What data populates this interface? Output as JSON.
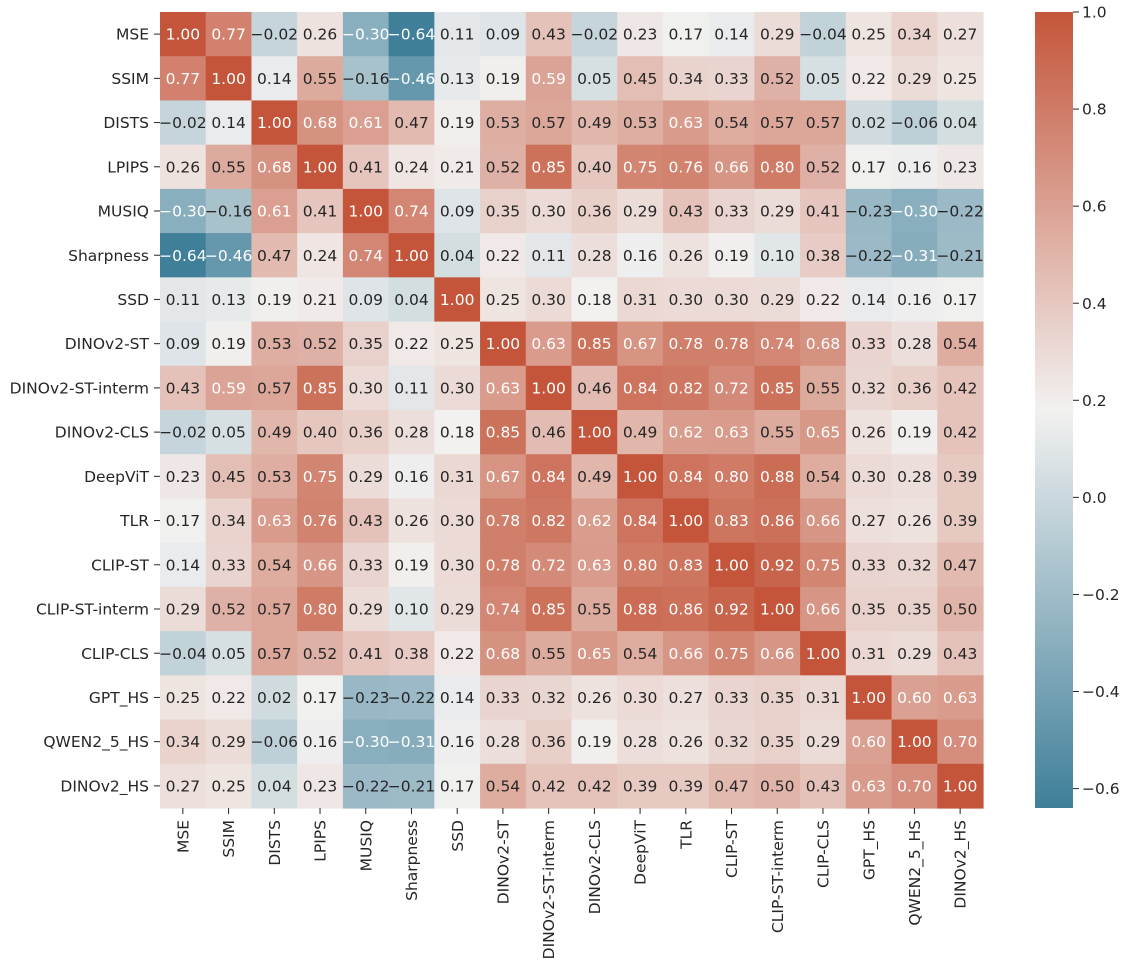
{
  "chart_data": {
    "type": "heatmap",
    "title": "",
    "xlabel": "",
    "ylabel": "",
    "labels": [
      "MSE",
      "SSIM",
      "DISTS",
      "LPIPS",
      "MUSIQ",
      "Sharpness",
      "SSD",
      "DINOv2-ST",
      "DINOv2-ST-interm",
      "DINOv2-CLS",
      "DeepViT",
      "TLR",
      "CLIP-ST",
      "CLIP-ST-interm",
      "CLIP-CLS",
      "GPT_HS",
      "QWEN2_5_HS",
      "DINOv2_HS"
    ],
    "values": [
      [
        1.0,
        0.77,
        -0.02,
        0.26,
        -0.3,
        -0.64,
        0.11,
        0.09,
        0.43,
        -0.02,
        0.23,
        0.17,
        0.14,
        0.29,
        -0.04,
        0.25,
        0.34,
        0.27
      ],
      [
        0.77,
        1.0,
        0.14,
        0.55,
        -0.16,
        -0.46,
        0.13,
        0.19,
        0.59,
        0.05,
        0.45,
        0.34,
        0.33,
        0.52,
        0.05,
        0.22,
        0.29,
        0.25
      ],
      [
        -0.02,
        0.14,
        1.0,
        0.68,
        0.61,
        0.47,
        0.19,
        0.53,
        0.57,
        0.49,
        0.53,
        0.63,
        0.54,
        0.57,
        0.57,
        0.02,
        -0.06,
        0.04
      ],
      [
        0.26,
        0.55,
        0.68,
        1.0,
        0.41,
        0.24,
        0.21,
        0.52,
        0.85,
        0.4,
        0.75,
        0.76,
        0.66,
        0.8,
        0.52,
        0.17,
        0.16,
        0.23
      ],
      [
        -0.3,
        -0.16,
        0.61,
        0.41,
        1.0,
        0.74,
        0.09,
        0.35,
        0.3,
        0.36,
        0.29,
        0.43,
        0.33,
        0.29,
        0.41,
        -0.23,
        -0.3,
        -0.22
      ],
      [
        -0.64,
        -0.46,
        0.47,
        0.24,
        0.74,
        1.0,
        0.04,
        0.22,
        0.11,
        0.28,
        0.16,
        0.26,
        0.19,
        0.1,
        0.38,
        -0.22,
        -0.31,
        -0.21
      ],
      [
        0.11,
        0.13,
        0.19,
        0.21,
        0.09,
        0.04,
        1.0,
        0.25,
        0.3,
        0.18,
        0.31,
        0.3,
        0.3,
        0.29,
        0.22,
        0.14,
        0.16,
        0.17
      ],
      [
        0.09,
        0.19,
        0.53,
        0.52,
        0.35,
        0.22,
        0.25,
        1.0,
        0.63,
        0.85,
        0.67,
        0.78,
        0.78,
        0.74,
        0.68,
        0.33,
        0.28,
        0.54
      ],
      [
        0.43,
        0.59,
        0.57,
        0.85,
        0.3,
        0.11,
        0.3,
        0.63,
        1.0,
        0.46,
        0.84,
        0.82,
        0.72,
        0.85,
        0.55,
        0.32,
        0.36,
        0.42
      ],
      [
        -0.02,
        0.05,
        0.49,
        0.4,
        0.36,
        0.28,
        0.18,
        0.85,
        0.46,
        1.0,
        0.49,
        0.62,
        0.63,
        0.55,
        0.65,
        0.26,
        0.19,
        0.42
      ],
      [
        0.23,
        0.45,
        0.53,
        0.75,
        0.29,
        0.16,
        0.31,
        0.67,
        0.84,
        0.49,
        1.0,
        0.84,
        0.8,
        0.88,
        0.54,
        0.3,
        0.28,
        0.39
      ],
      [
        0.17,
        0.34,
        0.63,
        0.76,
        0.43,
        0.26,
        0.3,
        0.78,
        0.82,
        0.62,
        0.84,
        1.0,
        0.83,
        0.86,
        0.66,
        0.27,
        0.26,
        0.39
      ],
      [
        0.14,
        0.33,
        0.54,
        0.66,
        0.33,
        0.19,
        0.3,
        0.78,
        0.72,
        0.63,
        0.8,
        0.83,
        1.0,
        0.92,
        0.75,
        0.33,
        0.32,
        0.47
      ],
      [
        0.29,
        0.52,
        0.57,
        0.8,
        0.29,
        0.1,
        0.29,
        0.74,
        0.85,
        0.55,
        0.88,
        0.86,
        0.92,
        1.0,
        0.66,
        0.35,
        0.35,
        0.5
      ],
      [
        -0.04,
        0.05,
        0.57,
        0.52,
        0.41,
        0.38,
        0.22,
        0.68,
        0.55,
        0.65,
        0.54,
        0.66,
        0.75,
        0.66,
        1.0,
        0.31,
        0.29,
        0.43
      ],
      [
        0.25,
        0.22,
        0.02,
        0.17,
        -0.23,
        -0.22,
        0.14,
        0.33,
        0.32,
        0.26,
        0.3,
        0.27,
        0.33,
        0.35,
        0.31,
        1.0,
        0.6,
        0.63
      ],
      [
        0.34,
        0.29,
        -0.06,
        0.16,
        -0.3,
        -0.31,
        0.16,
        0.28,
        0.36,
        0.19,
        0.28,
        0.26,
        0.32,
        0.35,
        0.29,
        0.6,
        1.0,
        0.7
      ],
      [
        0.27,
        0.25,
        0.04,
        0.23,
        -0.22,
        -0.21,
        0.17,
        0.54,
        0.42,
        0.42,
        0.39,
        0.39,
        0.47,
        0.5,
        0.43,
        0.63,
        0.7,
        1.0
      ]
    ],
    "value_range": [
      -0.64,
      1.0
    ],
    "colorbar": {
      "ticks": [
        1.0,
        0.8,
        0.6,
        0.4,
        0.2,
        0.0,
        -0.2,
        -0.4,
        -0.6
      ],
      "tick_labels": [
        "1.0",
        "0.8",
        "0.6",
        "0.4",
        "0.2",
        "0.0",
        "−0.2",
        "−0.4",
        "−0.6"
      ]
    },
    "colors": {
      "low": "#3f7f9a",
      "mid": "#f2f1f0",
      "high": "#c4553a",
      "dark_text": "#262626",
      "light_text": "#ffffff"
    }
  }
}
